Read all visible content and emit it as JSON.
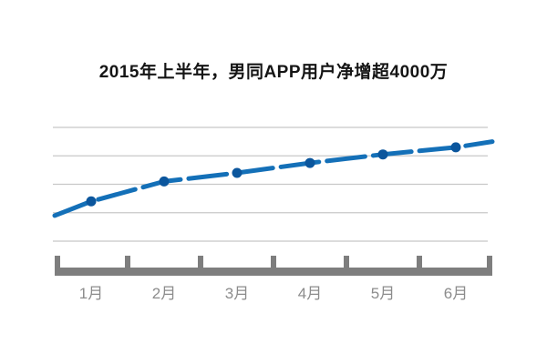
{
  "header": {
    "title": "2015年上半年，男同APP用户净增超4000万"
  },
  "chart_data": {
    "type": "line",
    "title": "2015年上半年，男同APP用户净增超4000万",
    "categories": [
      "1月",
      "2月",
      "3月",
      "4月",
      "5月",
      "6月"
    ],
    "values": [
      1.4,
      2.1,
      2.4,
      2.75,
      3.05,
      3.3
    ],
    "curve_extension": {
      "start": 0.9,
      "end": 3.5
    },
    "y_axis": {
      "labels_shown": false,
      "gridline_count": 5,
      "ylim": [
        0,
        4
      ]
    },
    "x_axis": {
      "tick_count": 7,
      "labels_between_ticks": true
    },
    "legend": "none",
    "style": "hand-drawn dashed line with round dots",
    "colors": {
      "line": "#1470b8",
      "dot": "#0b569d",
      "gridline": "#c8c8c8",
      "axis": "#7e7e7e",
      "tick_label": "#8c8c8c",
      "title": "#151515",
      "background": "#ffffff"
    }
  }
}
